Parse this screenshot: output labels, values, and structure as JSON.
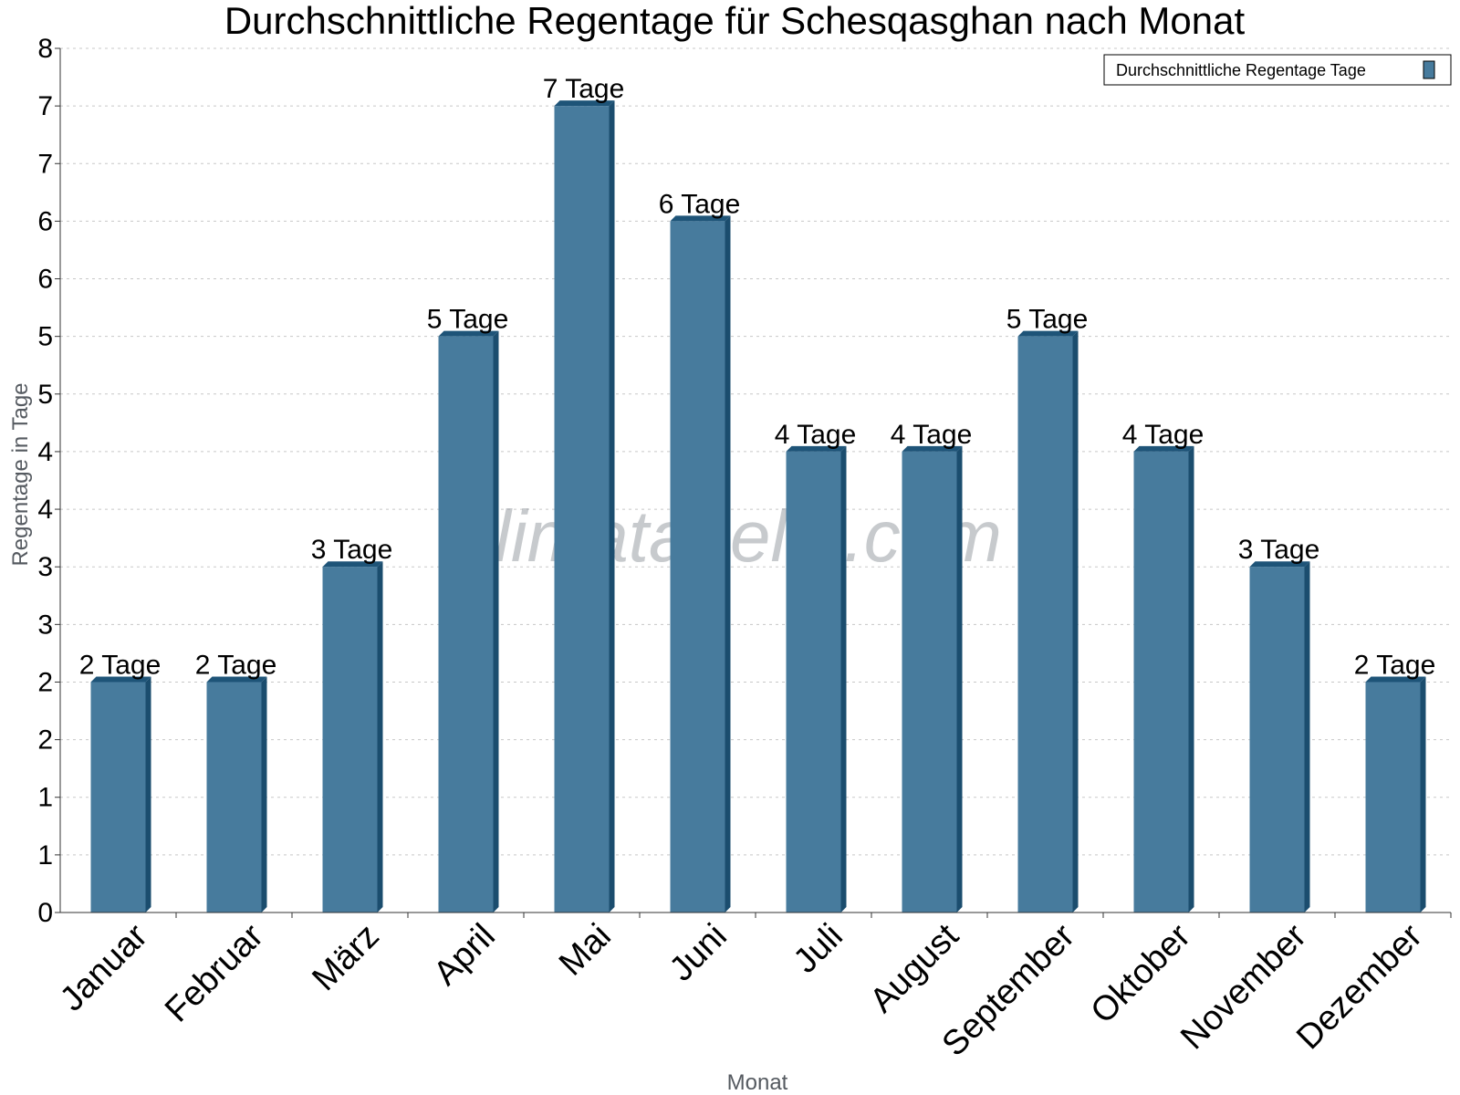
{
  "watermark": "klimatabelle.com",
  "colors": {
    "bar_front": "#477b9d",
    "bar_side": "#1b4d6e",
    "bar_top": "#1e5478",
    "grid": "#c8c8c8",
    "axis": "#333333"
  },
  "chart_data": {
    "type": "bar",
    "title": "Durchschnittliche Regentage für Schesqasghan nach Monat",
    "xlabel": "Monat",
    "ylabel": "Regentage in Tage",
    "categories": [
      "Januar",
      "Februar",
      "März",
      "April",
      "Mai",
      "Juni",
      "Juli",
      "August",
      "September",
      "Oktober",
      "November",
      "Dezember"
    ],
    "series": [
      {
        "name": "Durchschnittliche Regentage Tage",
        "values": [
          2,
          2,
          3,
          5,
          7,
          6,
          4,
          4,
          5,
          4,
          3,
          2
        ],
        "labels": [
          "2 Tage",
          "2 Tage",
          "3 Tage",
          "5 Tage",
          "7 Tage",
          "6 Tage",
          "4 Tage",
          "4 Tage",
          "5 Tage",
          "4 Tage",
          "3 Tage",
          "2 Tage"
        ]
      }
    ],
    "ylim": [
      0,
      7.5
    ],
    "yticks": [
      0,
      0.5,
      1,
      1.5,
      2,
      2.5,
      3,
      3.5,
      4,
      4.5,
      5,
      5.5,
      6,
      6.5,
      7,
      7.5
    ],
    "ytick_labels": [
      "0",
      "1",
      "1",
      "2",
      "2",
      "3",
      "3",
      "4",
      "4",
      "5",
      "5",
      "6",
      "6",
      "7",
      "7",
      "8"
    ],
    "grid": true,
    "legend_position": "top-right"
  }
}
